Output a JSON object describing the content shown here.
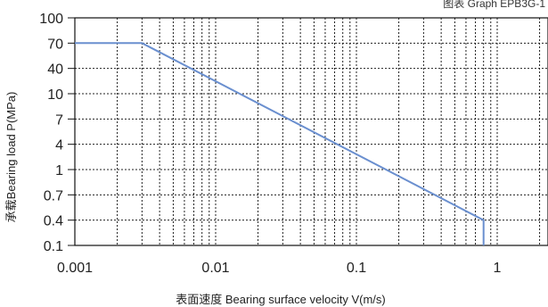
{
  "chart_data": {
    "type": "line",
    "title": "图表 Graph EPB3G-1",
    "xlabel": "表面速度 Bearing surface velocity V(m/s)",
    "ylabel": "承载Bearing load P(MPa)",
    "x_scale": "log",
    "xlim": [
      0.001,
      3
    ],
    "x_ticks": [
      "0.001",
      "0.01",
      "0.1",
      "1"
    ],
    "y_ticks": [
      "100",
      "70",
      "40",
      "10",
      "7",
      "4",
      "1",
      "0.7",
      "0.4",
      "0.1"
    ],
    "grid": true,
    "series": [
      {
        "color": "#6a8fcf",
        "points": [
          {
            "x": 0.001,
            "y": 70
          },
          {
            "x": 0.003,
            "y": 70
          },
          {
            "x": 0.8,
            "y": 0.4
          },
          {
            "x": 0.8,
            "y": 0.1
          }
        ]
      }
    ]
  }
}
